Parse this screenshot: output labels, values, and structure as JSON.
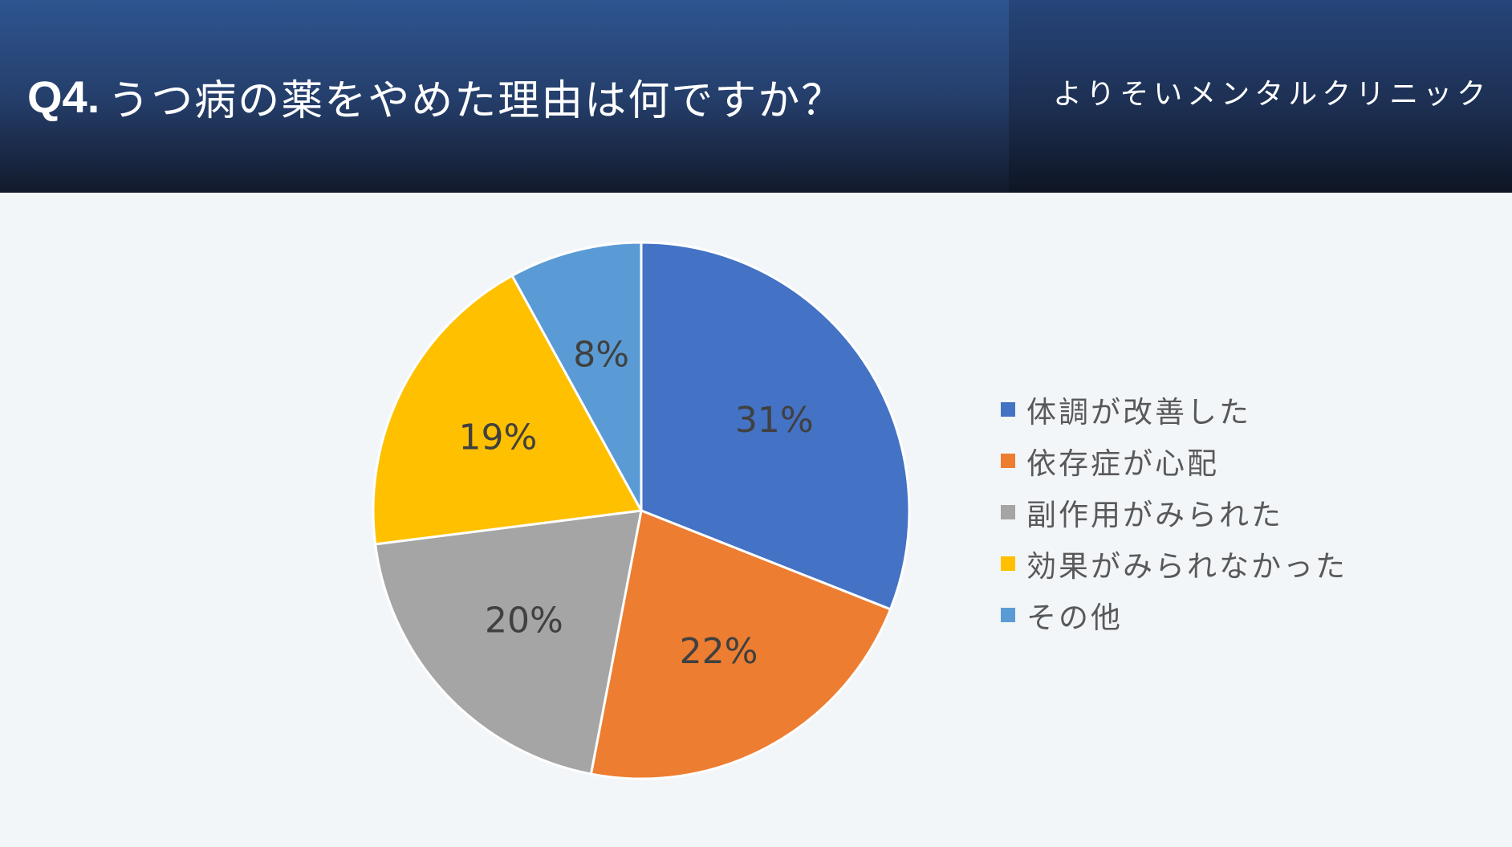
{
  "header": {
    "question_no": "Q4.",
    "question_text": "うつ病の薬をやめた理由は何ですか？",
    "clinic_name": "よりそいメンタルクリニック"
  },
  "chart_data": {
    "type": "pie",
    "categories": [
      "体調が改善した",
      "依存症が心配",
      "副作用がみられた",
      "効果がみられなかった",
      "その他"
    ],
    "values": [
      31,
      22,
      20,
      19,
      8
    ],
    "labels": [
      "31%",
      "22%",
      "20%",
      "19%",
      "8%"
    ],
    "colors": [
      "#4472c4",
      "#ed7d31",
      "#a5a5a5",
      "#ffc000",
      "#5b9bd5"
    ],
    "legend": "right"
  }
}
